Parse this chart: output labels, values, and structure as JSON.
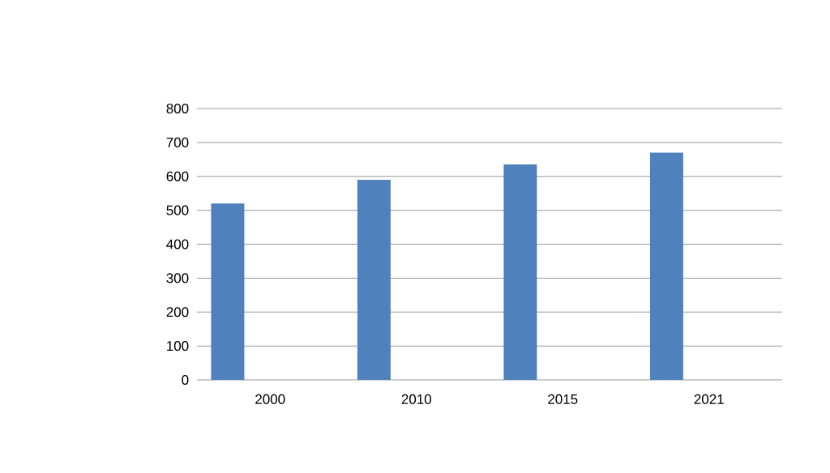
{
  "chart_data": {
    "type": "bar",
    "categories": [
      "2000",
      "2010",
      "2015",
      "2021"
    ],
    "values": [
      520,
      590,
      635,
      670
    ],
    "color": "#4f81bd",
    "ylim": [
      0,
      800
    ],
    "yticks": [
      0,
      100,
      200,
      300,
      400,
      500,
      600,
      700,
      800
    ],
    "grid": "y"
  }
}
